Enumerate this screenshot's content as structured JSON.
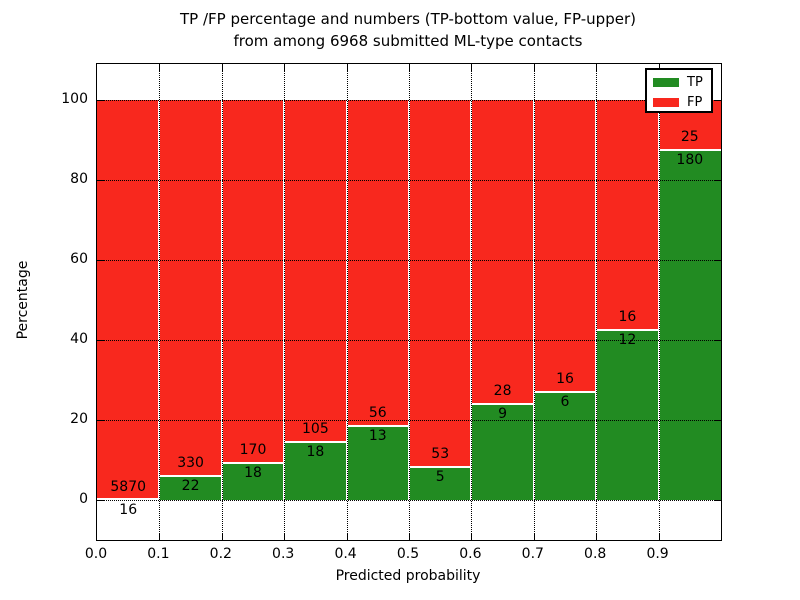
{
  "chart_data": {
    "type": "bar",
    "stacked": true,
    "units": "percent_of_bin_total",
    "title_lines": [
      "TP /FP percentage and numbers (TP-bottom value, FP-upper)",
      "from among 6968 submitted ML-type contacts"
    ],
    "xlabel": "Predicted probability",
    "ylabel": "Percentage",
    "x_tick_labels": [
      "0.0",
      "0.1",
      "0.2",
      "0.3",
      "0.4",
      "0.5",
      "0.6",
      "0.7",
      "0.8",
      "0.9"
    ],
    "y_tick_values": [
      0,
      20,
      40,
      60,
      80,
      100
    ],
    "xlim": [
      0.0,
      1.0
    ],
    "ylim": [
      -10,
      109
    ],
    "bin_width": 0.1,
    "bin_starts": [
      0.0,
      0.1,
      0.2,
      0.3,
      0.4,
      0.5,
      0.6,
      0.7,
      0.8,
      0.9
    ],
    "grid": true,
    "total_contacts": 6968,
    "series": [
      {
        "name": "TP",
        "color": "#228b22",
        "counts": [
          16,
          22,
          18,
          18,
          13,
          5,
          9,
          6,
          12,
          180
        ]
      },
      {
        "name": "FP",
        "color": "#f8281e",
        "counts": [
          5870,
          330,
          170,
          105,
          56,
          53,
          28,
          16,
          16,
          25
        ]
      }
    ],
    "tp_percent_per_bin": [
      0.27,
      6.25,
      9.57,
      14.63,
      18.84,
      8.62,
      24.32,
      27.27,
      42.86,
      87.8
    ],
    "legend": {
      "position": "upper right",
      "entries": [
        {
          "label": "TP",
          "color": "#228b22"
        },
        {
          "label": "FP",
          "color": "#f8281e"
        }
      ]
    }
  }
}
